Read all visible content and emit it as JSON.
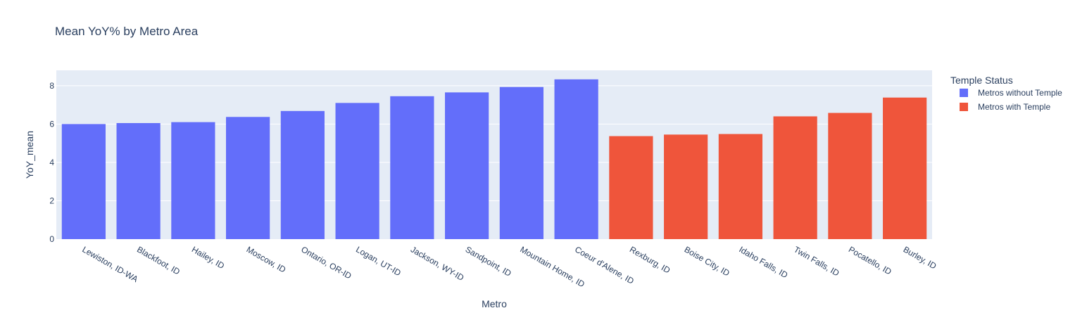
{
  "chart_data": {
    "type": "bar",
    "title": "Mean YoY% by Metro Area",
    "xlabel": "Metro",
    "ylabel": "YoY_mean",
    "ylim": [
      0,
      8.8
    ],
    "yticks": [
      0,
      2,
      4,
      6,
      8
    ],
    "grid": true,
    "legend": {
      "title": "Temple Status",
      "placement": "top-right"
    },
    "series": [
      {
        "name": "Metros without Temple",
        "color": "#636efa",
        "categories": [
          "Lewiston, ID-WA",
          "Blackfoot, ID",
          "Hailey, ID",
          "Moscow, ID",
          "Ontario, OR-ID",
          "Logan, UT-ID",
          "Jackson, WY-ID",
          "Sandpoint, ID",
          "Mountain Home, ID",
          "Coeur d'Alene, ID"
        ],
        "values": [
          6.0,
          6.05,
          6.1,
          6.37,
          6.68,
          7.1,
          7.45,
          7.65,
          7.93,
          8.33
        ]
      },
      {
        "name": "Metros with Temple",
        "color": "#ef553b",
        "categories": [
          "Rexburg, ID",
          "Boise City, ID",
          "Idaho Falls, ID",
          "Twin Falls, ID",
          "Pocatello, ID",
          "Burley, ID"
        ],
        "values": [
          5.37,
          5.45,
          5.48,
          6.4,
          6.58,
          7.38
        ]
      }
    ]
  }
}
